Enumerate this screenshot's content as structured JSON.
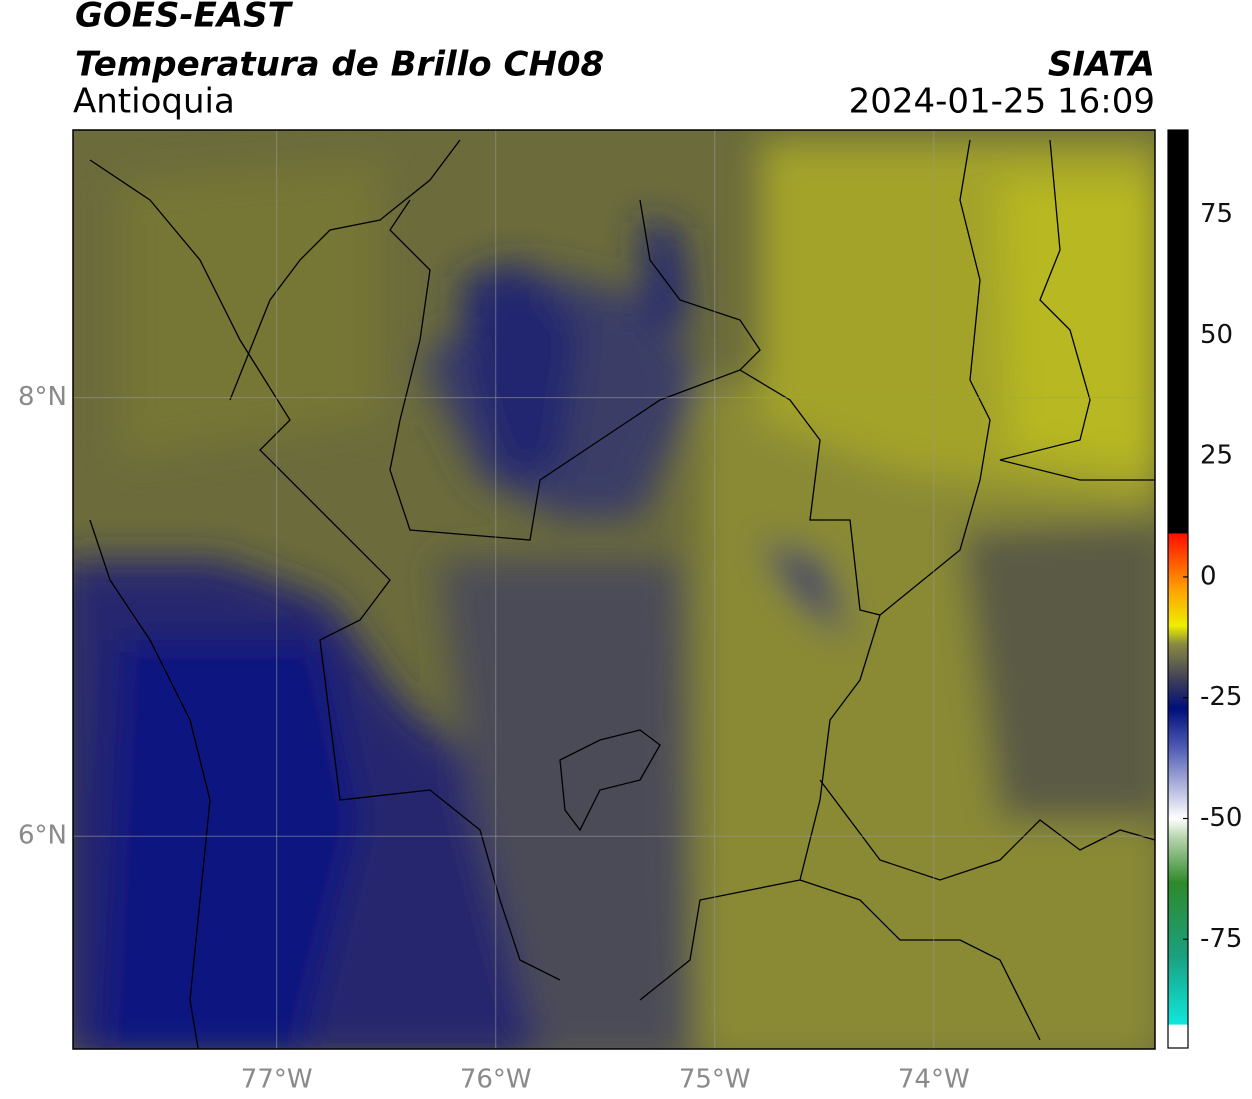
{
  "chart_data": {
    "type": "map",
    "title": "GOES-EAST",
    "subtitle": "Temperatura de Brillo CH08",
    "region": "Antioquia",
    "source": "SIATA",
    "timestamp": "2024-01-25 16:09",
    "xlim": [
      -77.93,
      -72.99
    ],
    "ylim": [
      5.03,
      9.22
    ],
    "xticks": [
      {
        "value": -77,
        "label": "77°W"
      },
      {
        "value": -76,
        "label": "76°W"
      },
      {
        "value": -75,
        "label": "75°W"
      },
      {
        "value": -74,
        "label": "74°W"
      }
    ],
    "yticks": [
      {
        "value": 6,
        "label": "6°N"
      },
      {
        "value": 8,
        "label": "8°N"
      }
    ],
    "grid": true,
    "colorbar": {
      "lim": [
        -97.5,
        92.5
      ],
      "ticks": [
        -75,
        -50,
        -25,
        0,
        25,
        50,
        75
      ]
    }
  }
}
